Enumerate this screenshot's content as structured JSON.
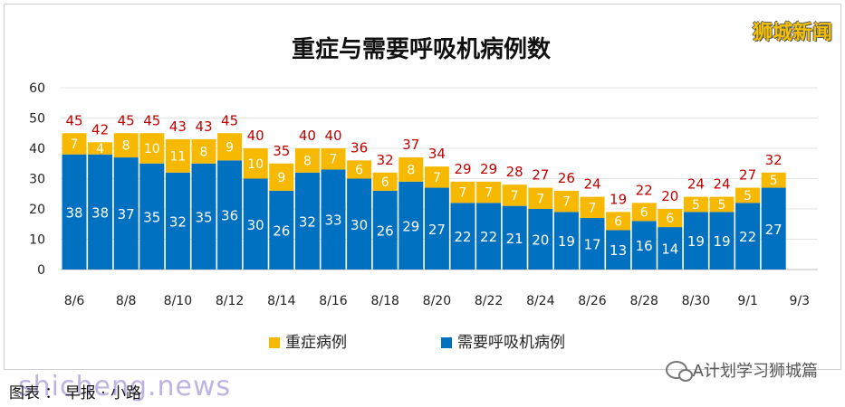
{
  "brand_text": "狮城新闻",
  "caption_text": "图表 ：  早报 ·  小路",
  "caption_watermark": "shicheng.news",
  "wechat_account": "A计划学习狮城篇",
  "colors": {
    "severe": "#f7b800",
    "ventilator": "#0070c0",
    "label": "#c00000"
  },
  "chart_data": {
    "type": "bar",
    "stacked": true,
    "title": "重症与需要呼吸机病例数",
    "categories": [
      "8/6",
      "8/7",
      "8/8",
      "8/9",
      "8/10",
      "8/11",
      "8/12",
      "8/13",
      "8/14",
      "8/15",
      "8/16",
      "8/17",
      "8/18",
      "8/19",
      "8/20",
      "8/21",
      "8/22",
      "8/23",
      "8/24",
      "8/25",
      "8/26",
      "8/27",
      "8/28",
      "8/29",
      "8/30",
      "8/31",
      "9/1",
      "9/2"
    ],
    "tick_labels": [
      "8/6",
      "8/8",
      "8/10",
      "8/12",
      "8/14",
      "8/16",
      "8/18",
      "8/20",
      "8/22",
      "8/24",
      "8/26",
      "8/28",
      "8/30",
      "9/1",
      "9/3"
    ],
    "series": [
      {
        "name": "需要呼吸机病例",
        "values": [
          38,
          38,
          37,
          35,
          32,
          35,
          36,
          30,
          26,
          32,
          33,
          30,
          26,
          29,
          27,
          22,
          22,
          21,
          20,
          19,
          17,
          13,
          16,
          14,
          19,
          19,
          22,
          27
        ]
      },
      {
        "name": "重症病例",
        "values": [
          7,
          4,
          8,
          10,
          11,
          8,
          9,
          10,
          9,
          8,
          7,
          6,
          6,
          8,
          7,
          7,
          7,
          7,
          7,
          7,
          7,
          6,
          6,
          6,
          5,
          5,
          5,
          5
        ]
      }
    ],
    "totals": [
      45,
      42,
      45,
      45,
      43,
      43,
      45,
      40,
      35,
      40,
      40,
      36,
      32,
      37,
      34,
      29,
      29,
      28,
      27,
      26,
      24,
      19,
      22,
      20,
      24,
      24,
      27,
      32
    ],
    "yticks": [
      0,
      10,
      20,
      30,
      40,
      50,
      60
    ],
    "ylim": [
      0,
      60
    ],
    "grid": true,
    "legend_position": "bottom"
  }
}
